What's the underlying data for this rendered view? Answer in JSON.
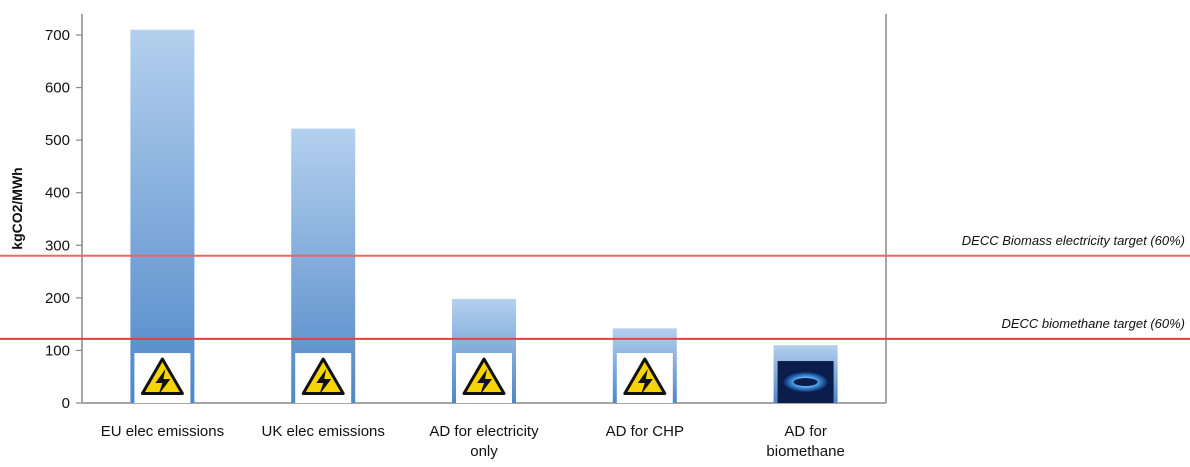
{
  "chart_data": {
    "type": "bar",
    "title": "",
    "xlabel": "",
    "ylabel": "kgCO2/MWh",
    "ylim": [
      0,
      700
    ],
    "yticks": [
      0,
      100,
      200,
      300,
      400,
      500,
      600,
      700
    ],
    "categories": [
      [
        "EU elec emissions"
      ],
      [
        "UK elec emissions"
      ],
      [
        "AD for electricity",
        "only"
      ],
      [
        "AD for CHP"
      ],
      [
        "AD for",
        "biomethane"
      ]
    ],
    "values": [
      710,
      522,
      198,
      142,
      110
    ],
    "bar_icons": [
      "high-voltage-icon",
      "high-voltage-icon",
      "high-voltage-icon",
      "high-voltage-icon",
      "gas-flame-icon"
    ],
    "reference_lines": [
      {
        "label": "DECC Biomass electricity  target (60%)",
        "value": 280,
        "color": "#e8675e"
      },
      {
        "label": "DECC biomethane target (60%)",
        "value": 122,
        "color": "#d9463e"
      }
    ],
    "grid": false,
    "legend": "none",
    "colors": {
      "bar_top": "#b4d0ee",
      "bar_bottom": "#4f87c8",
      "axis": "#888888"
    }
  }
}
